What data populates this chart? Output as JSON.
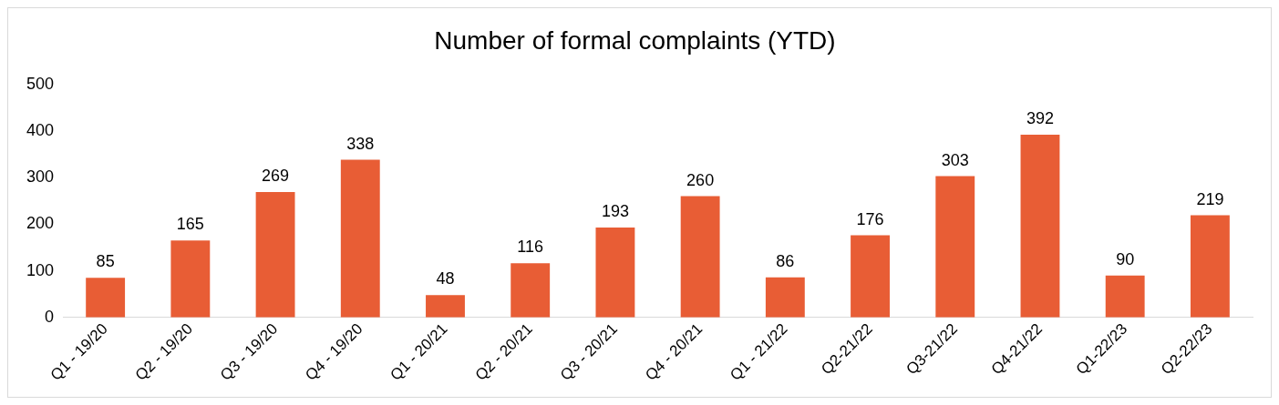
{
  "chart_data": {
    "type": "bar",
    "title": "Number of formal complaints (YTD)",
    "categories": [
      "Q1 - 19/20",
      "Q2 - 19/20",
      "Q3 - 19/20",
      "Q4 - 19/20",
      "Q1 - 20/21",
      "Q2 - 20/21",
      "Q3 - 20/21",
      "Q4 - 20/21",
      "Q1 - 21/22",
      "Q2-21/22",
      "Q3-21/22",
      "Q4-21/22",
      "Q1-22/23",
      "Q2-22/23"
    ],
    "values": [
      85,
      165,
      269,
      338,
      48,
      116,
      193,
      260,
      86,
      176,
      303,
      392,
      90,
      219
    ],
    "color": "#e85d35",
    "ylim": [
      0,
      500
    ],
    "yticks": [
      0,
      100,
      200,
      300,
      400,
      500
    ],
    "data_labels": true,
    "grid": false,
    "legend": false
  }
}
